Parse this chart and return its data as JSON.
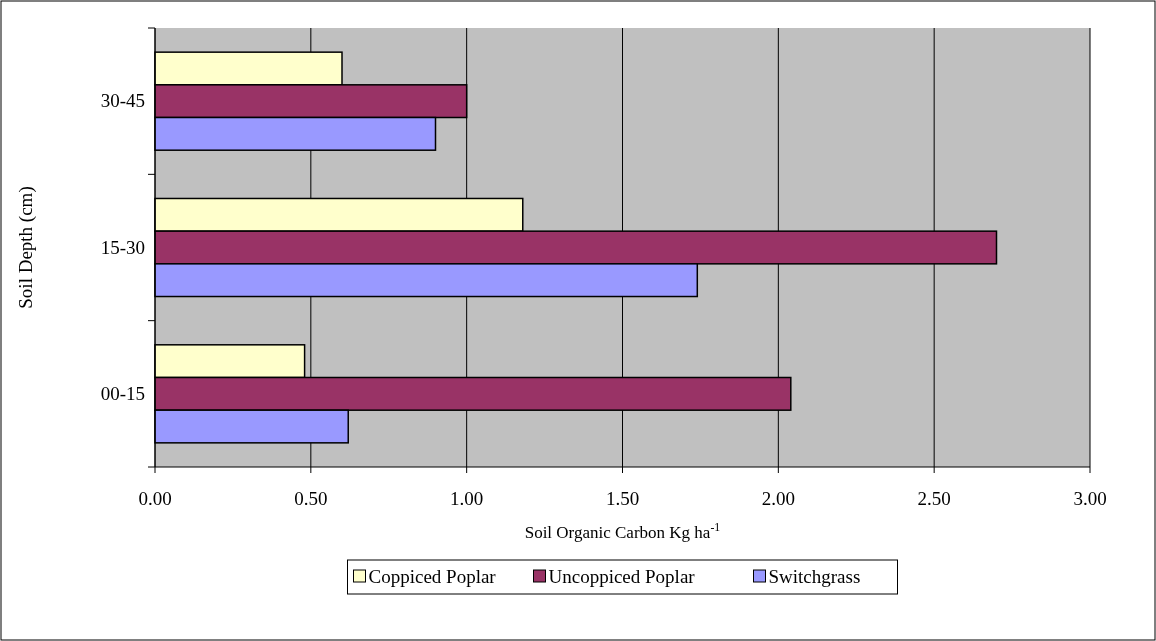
{
  "chart_data": {
    "type": "bar",
    "orientation": "horizontal",
    "xlabel": "Soil Organic Carbon Kg ha$^{-1}$",
    "ylabel": "Soil Depth (cm)",
    "categories": [
      "30-45",
      "15-30",
      "00-15"
    ],
    "series": [
      {
        "name": "Coppiced Poplar",
        "color": "#ffffcc",
        "values": [
          0.6,
          1.18,
          0.48
        ]
      },
      {
        "name": "Uncoppiced Poplar",
        "color": "#993366",
        "values": [
          1.0,
          2.7,
          2.04
        ]
      },
      {
        "name": "Switchgrass",
        "color": "#9999ff",
        "values": [
          0.9,
          1.74,
          0.62
        ]
      }
    ],
    "xlim": [
      0,
      3
    ],
    "xticks": [
      {
        "value": 0,
        "label": "0.00"
      },
      {
        "value": 0.5,
        "label": "0.50"
      },
      {
        "value": 1,
        "label": "1.00"
      },
      {
        "value": 1.5,
        "label": "1.50"
      },
      {
        "value": 2,
        "label": "2.00"
      },
      {
        "value": 2.5,
        "label": "2.50"
      },
      {
        "value": 3,
        "label": "3.00"
      }
    ],
    "grid": "x",
    "legend": "bottom"
  }
}
